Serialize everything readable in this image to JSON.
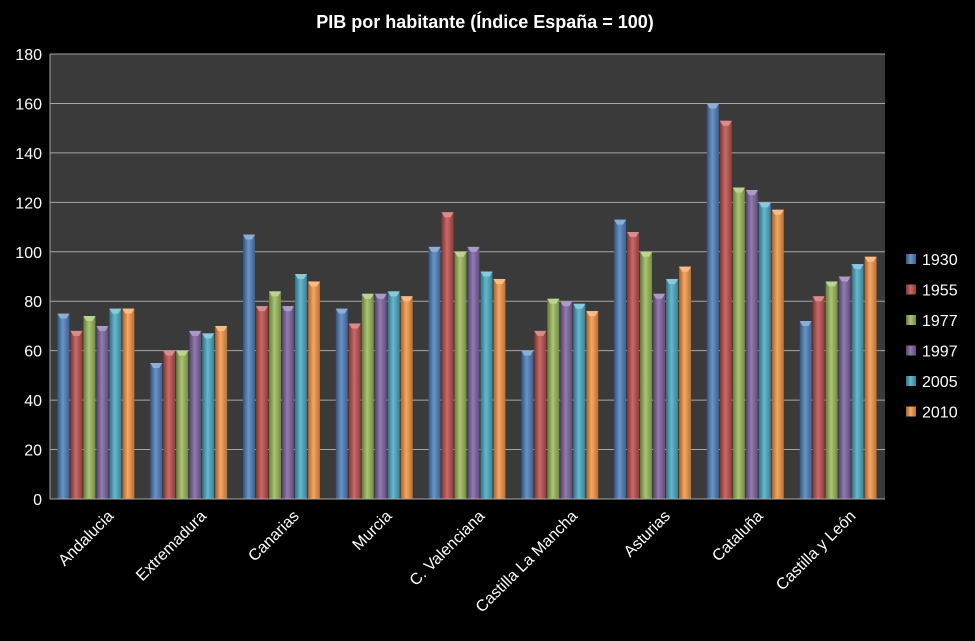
{
  "chart_data": {
    "type": "bar",
    "title": "PIB por habitante (Índice España = 100)",
    "xlabel": "",
    "ylabel": "",
    "ylim": [
      0,
      180
    ],
    "yticks": [
      0,
      20,
      40,
      60,
      80,
      100,
      120,
      140,
      160,
      180
    ],
    "grid": true,
    "legend_position": "right",
    "plot_background": "#3a3a3a",
    "categories": [
      "Andalucia",
      "Extremadura",
      "Canarias",
      "Murcia",
      "C. Valenciana",
      "Castilla La Mancha",
      "Asturias",
      "Cataluña",
      "Castilla y León"
    ],
    "series": [
      {
        "name": "1930",
        "color": "#4f81bd",
        "values": [
          75,
          55,
          107,
          77,
          102,
          60,
          113,
          160,
          72
        ]
      },
      {
        "name": "1955",
        "color": "#c0504d",
        "values": [
          68,
          60,
          78,
          71,
          116,
          68,
          108,
          153,
          82
        ]
      },
      {
        "name": "1977",
        "color": "#9bbb59",
        "values": [
          74,
          60,
          84,
          83,
          100,
          81,
          100,
          126,
          88
        ]
      },
      {
        "name": "1997",
        "color": "#8064a2",
        "values": [
          70,
          68,
          78,
          83,
          102,
          80,
          83,
          125,
          90
        ]
      },
      {
        "name": "2005",
        "color": "#4bacc6",
        "values": [
          77,
          67,
          91,
          84,
          92,
          79,
          89,
          120,
          95
        ]
      },
      {
        "name": "2010",
        "color": "#f79646",
        "values": [
          77,
          70,
          88,
          82,
          89,
          76,
          94,
          117,
          98
        ]
      }
    ]
  }
}
